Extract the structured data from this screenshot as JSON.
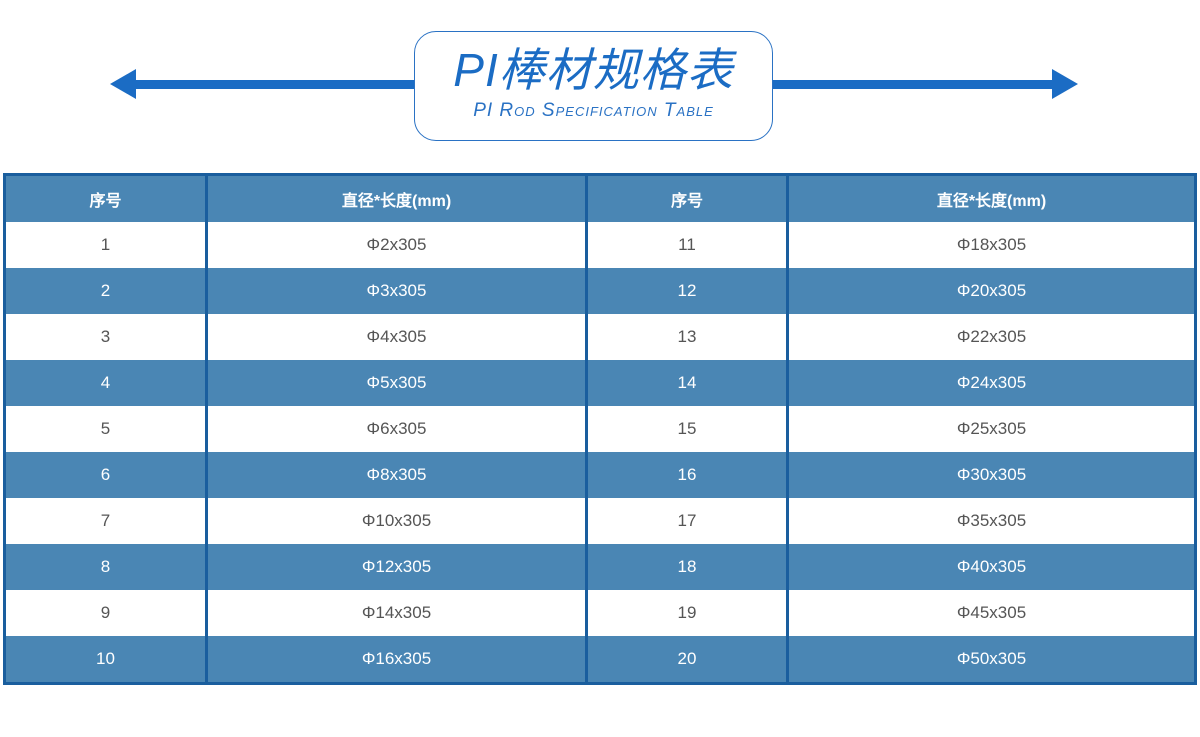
{
  "title": {
    "cn": "PI棒材规格表",
    "en": "PI Rod Specification Table"
  },
  "colors": {
    "accent": "#1b6cc4",
    "row_fill": "#4a86b4",
    "border": "#1a5e9e"
  },
  "table": {
    "headers": [
      "序号",
      "直径*长度(mm)",
      "序号",
      "直径*长度(mm)"
    ],
    "rows": [
      [
        "1",
        "Φ2x305",
        "11",
        "Φ18x305"
      ],
      [
        "2",
        "Φ3x305",
        "12",
        "Φ20x305"
      ],
      [
        "3",
        "Φ4x305",
        "13",
        "Φ22x305"
      ],
      [
        "4",
        "Φ5x305",
        "14",
        "Φ24x305"
      ],
      [
        "5",
        "Φ6x305",
        "15",
        "Φ25x305"
      ],
      [
        "6",
        "Φ8x305",
        "16",
        "Φ30x305"
      ],
      [
        "7",
        "Φ10x305",
        "17",
        "Φ35x305"
      ],
      [
        "8",
        "Φ12x305",
        "18",
        "Φ40x305"
      ],
      [
        "9",
        "Φ14x305",
        "19",
        "Φ45x305"
      ],
      [
        "10",
        "Φ16x305",
        "20",
        "Φ50x305"
      ]
    ]
  }
}
